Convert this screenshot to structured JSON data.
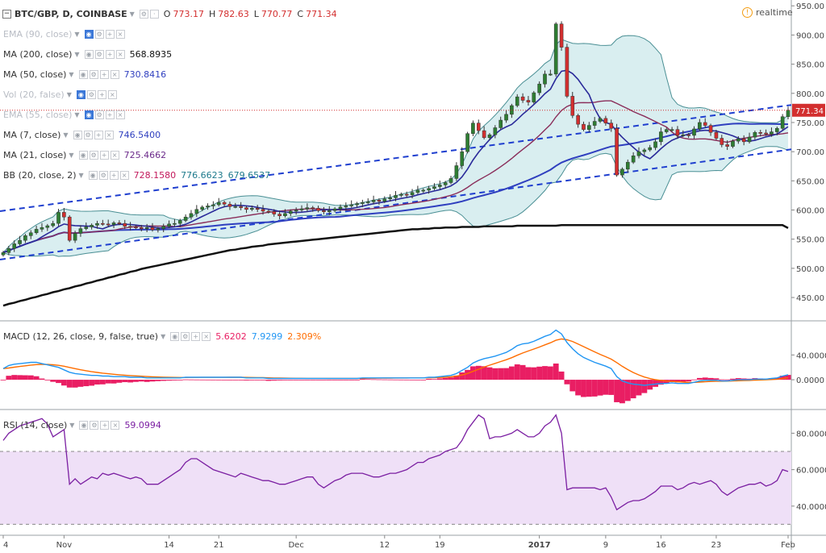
{
  "header": {
    "symbol": "BTC/GBP, D, COINBASE",
    "ohlc": {
      "o_label": "O",
      "o": "773.17",
      "h_label": "H",
      "h": "782.63",
      "l_label": "L",
      "l": "770.77",
      "c_label": "C",
      "c": "771.34"
    },
    "realtime_label": "realtime"
  },
  "indicators": [
    {
      "label": "EMA (90, close)",
      "value": "",
      "faded": true,
      "color": "#b8bcc4",
      "eye": true
    },
    {
      "label": "MA (200, close)",
      "value": "568.8935",
      "faded": false,
      "color": "#111111",
      "eye": false
    },
    {
      "label": "MA (50, close)",
      "value": "730.8416",
      "faded": false,
      "color": "#2f3fbf",
      "eye": false
    },
    {
      "label": "Vol (20, false)",
      "value": "",
      "faded": true,
      "color": "#b8bcc4",
      "eye": true
    },
    {
      "label": "EMA (55, close)",
      "value": "",
      "faded": true,
      "color": "#b8bcc4",
      "eye": true
    },
    {
      "label": "MA (7, close)",
      "value": "746.5400",
      "faded": false,
      "color": "#2f3fbf",
      "eye": false
    },
    {
      "label": "MA (21, close)",
      "value": "725.4662",
      "faded": false,
      "color": "#6b2a8a",
      "eye": false
    },
    {
      "label": "BB (20, close, 2)",
      "values": [
        "728.1580",
        "776.6623",
        "679.6537"
      ],
      "faded": false,
      "colors": [
        "#c2185b",
        "#1e7a8c",
        "#1e7a8c"
      ],
      "eye": false
    }
  ],
  "macd_legend": {
    "label": "MACD (12, 26, close, 9, false, true)",
    "values": [
      "5.6202",
      "7.9299",
      "2.309%"
    ],
    "colors": [
      "#e91e63",
      "#2196f3",
      "#ff6d00"
    ]
  },
  "rsi_legend": {
    "label": "RSI (14, close)",
    "value": "59.0994",
    "color": "#7b1fa2"
  },
  "price_badge": "771.34",
  "colors": {
    "up": "#2e7d32",
    "down": "#d32f2f",
    "bb_fill": "#d9eef0",
    "bb_line": "#4a8f94",
    "trend": "#1f3fcf",
    "ma50": "#2f3fbf",
    "ma7": "#2a2a9a",
    "ma21": "#8a2d5a",
    "ma200": "#111111",
    "rsi_band": "#efe0f7",
    "rsi_line": "#7b1fa2",
    "macd_line": "#2196f3",
    "signal_line": "#ff6d00",
    "hist": "#e91e63",
    "badge": "#d32f2f"
  },
  "chart_data": [
    {
      "type": "candlestick",
      "title": "BTC/GBP, D, COINBASE",
      "ylim": [
        410,
        960
      ],
      "y_ticks": [
        "950.00",
        "900.00",
        "850.00",
        "800.00",
        "750.00",
        "700.00",
        "650.00",
        "600.00",
        "550.00",
        "500.00",
        "450.00"
      ],
      "x_ticks": [
        {
          "label": "4",
          "i": 0
        },
        {
          "label": "Nov",
          "i": 11
        },
        {
          "label": "14",
          "i": 30
        },
        {
          "label": "21",
          "i": 39
        },
        {
          "label": "Dec",
          "i": 53
        },
        {
          "label": "12",
          "i": 69
        },
        {
          "label": "19",
          "i": 79
        },
        {
          "label": "2017",
          "i": 97,
          "bold": true
        },
        {
          "label": "9",
          "i": 109
        },
        {
          "label": "16",
          "i": 119
        },
        {
          "label": "23",
          "i": 129
        },
        {
          "label": "Feb",
          "i": 142
        }
      ],
      "close": [
        527,
        534,
        542,
        548,
        556,
        561,
        567,
        570,
        573,
        577,
        596,
        588,
        548,
        560,
        568,
        571,
        574,
        577,
        576,
        575,
        578,
        577,
        572,
        571,
        570,
        568,
        570,
        566,
        568,
        572,
        576,
        577,
        582,
        588,
        594,
        601,
        605,
        607,
        609,
        613,
        610,
        606,
        606,
        604,
        601,
        603,
        601,
        598,
        597,
        593,
        590,
        594,
        598,
        600,
        602,
        604,
        603,
        599,
        597,
        599,
        602,
        605,
        607,
        609,
        611,
        613,
        614,
        617,
        615,
        619,
        621,
        625,
        627,
        626,
        630,
        634,
        634,
        637,
        640,
        643,
        647,
        654,
        676,
        700,
        731,
        749,
        736,
        724,
        729,
        741,
        754,
        764,
        779,
        794,
        788,
        785,
        801,
        816,
        833,
        833,
        919,
        879,
        795,
        762,
        747,
        738,
        745,
        752,
        757,
        749,
        740,
        660,
        670,
        682,
        693,
        700,
        703,
        707,
        717,
        734,
        738,
        738,
        728,
        729,
        728,
        739,
        750,
        745,
        733,
        723,
        712,
        709,
        718,
        722,
        717,
        725,
        733,
        732,
        730,
        734,
        740,
        760,
        771
      ],
      "ma200": [
        436,
        439,
        441,
        444,
        446,
        449,
        451,
        454,
        456,
        459,
        461,
        464,
        466,
        469,
        471,
        474,
        476,
        479,
        481,
        484,
        486,
        489,
        491,
        494,
        496,
        499,
        501,
        503,
        505,
        507,
        509,
        511,
        513,
        515,
        517,
        519,
        521,
        523,
        525,
        527,
        529,
        531,
        532,
        534,
        535,
        537,
        538,
        539,
        541,
        542,
        543,
        544,
        545,
        546,
        547,
        548,
        549,
        550,
        551,
        552,
        553,
        554,
        555,
        556,
        557,
        558,
        559,
        560,
        561,
        562,
        563,
        564,
        565,
        566,
        567,
        567,
        568,
        568,
        569,
        569,
        570,
        570,
        570,
        571,
        571,
        571,
        571,
        572,
        572,
        572,
        572,
        572,
        572,
        573,
        573,
        573,
        573,
        573,
        573,
        573,
        573,
        574,
        574,
        574,
        574,
        574,
        574,
        574,
        574,
        574,
        574,
        574,
        574,
        574,
        574,
        574,
        574,
        574,
        574,
        574,
        574,
        574,
        574,
        574,
        574,
        574,
        574,
        574,
        574,
        574,
        574,
        574,
        574,
        574,
        574,
        574,
        574,
        574,
        574,
        574,
        574,
        574,
        569
      ]
    },
    {
      "type": "line",
      "title": "MACD (12, 26, close, 9, false, true)",
      "ylim": [
        -48,
        95
      ],
      "y_ticks": [
        "40.0000",
        "0.0000"
      ],
      "series": [
        {
          "name": "MACD",
          "values": [
            18,
            23,
            25,
            26,
            27,
            28,
            28,
            26,
            24,
            22,
            20,
            16,
            12,
            10,
            9,
            8,
            7,
            7,
            6,
            6,
            5,
            5,
            5,
            4,
            4,
            4,
            3,
            3,
            3,
            3,
            3,
            3,
            3,
            4,
            4,
            4,
            4,
            4,
            4,
            4,
            4,
            4,
            4,
            4,
            3,
            3,
            3,
            3,
            2,
            2,
            2,
            2,
            2,
            2,
            2,
            2,
            2,
            2,
            2,
            2,
            2,
            2,
            2,
            2,
            2,
            3,
            3,
            3,
            3,
            3,
            3,
            3,
            3,
            3,
            3,
            3,
            3,
            4,
            4,
            5,
            6,
            7,
            10,
            15,
            20,
            27,
            31,
            34,
            36,
            38,
            41,
            44,
            49,
            55,
            58,
            59,
            62,
            66,
            70,
            73,
            80,
            74,
            60,
            50,
            42,
            36,
            32,
            28,
            25,
            22,
            18,
            5,
            -2,
            -5,
            -7,
            -8,
            -9,
            -8,
            -7,
            -6,
            -6,
            -5,
            -6,
            -6,
            -6,
            -4,
            -2,
            -1,
            -1,
            -1,
            -2,
            -2,
            -1,
            0,
            0,
            0,
            1,
            1,
            1,
            2,
            3,
            6,
            8
          ]
        }
      ]
    },
    {
      "type": "line",
      "title": "RSI (14, close)",
      "ylim": [
        24,
        93
      ],
      "y_ticks": [
        "80.0000",
        "60.0000",
        "40.0000"
      ],
      "band": [
        30,
        70
      ],
      "series": [
        {
          "name": "RSI",
          "values": [
            76,
            80,
            82,
            84,
            85,
            86,
            87,
            88,
            85,
            78,
            80,
            82,
            52,
            55,
            52,
            54,
            56,
            55,
            58,
            57,
            58,
            57,
            56,
            55,
            56,
            55,
            52,
            52,
            52,
            54,
            56,
            58,
            60,
            64,
            66,
            66,
            64,
            62,
            60,
            59,
            58,
            57,
            56,
            58,
            57,
            56,
            55,
            54,
            54,
            53,
            52,
            52,
            53,
            54,
            55,
            56,
            56,
            52,
            50,
            52,
            54,
            55,
            57,
            58,
            58,
            58,
            57,
            56,
            56,
            57,
            58,
            58,
            59,
            60,
            62,
            64,
            64,
            66,
            67,
            68,
            70,
            71,
            72,
            76,
            82,
            86,
            90,
            88,
            77,
            78,
            78,
            79,
            80,
            82,
            80,
            78,
            78,
            80,
            84,
            86,
            90,
            80,
            49,
            50,
            50,
            50,
            50,
            50,
            49,
            50,
            45,
            38,
            40,
            42,
            43,
            43,
            44,
            46,
            48,
            51,
            51,
            51,
            49,
            50,
            52,
            53,
            52,
            53,
            54,
            52,
            48,
            46,
            48,
            50,
            51,
            52,
            52,
            53,
            51,
            52,
            54,
            60,
            59
          ]
        }
      ]
    }
  ]
}
